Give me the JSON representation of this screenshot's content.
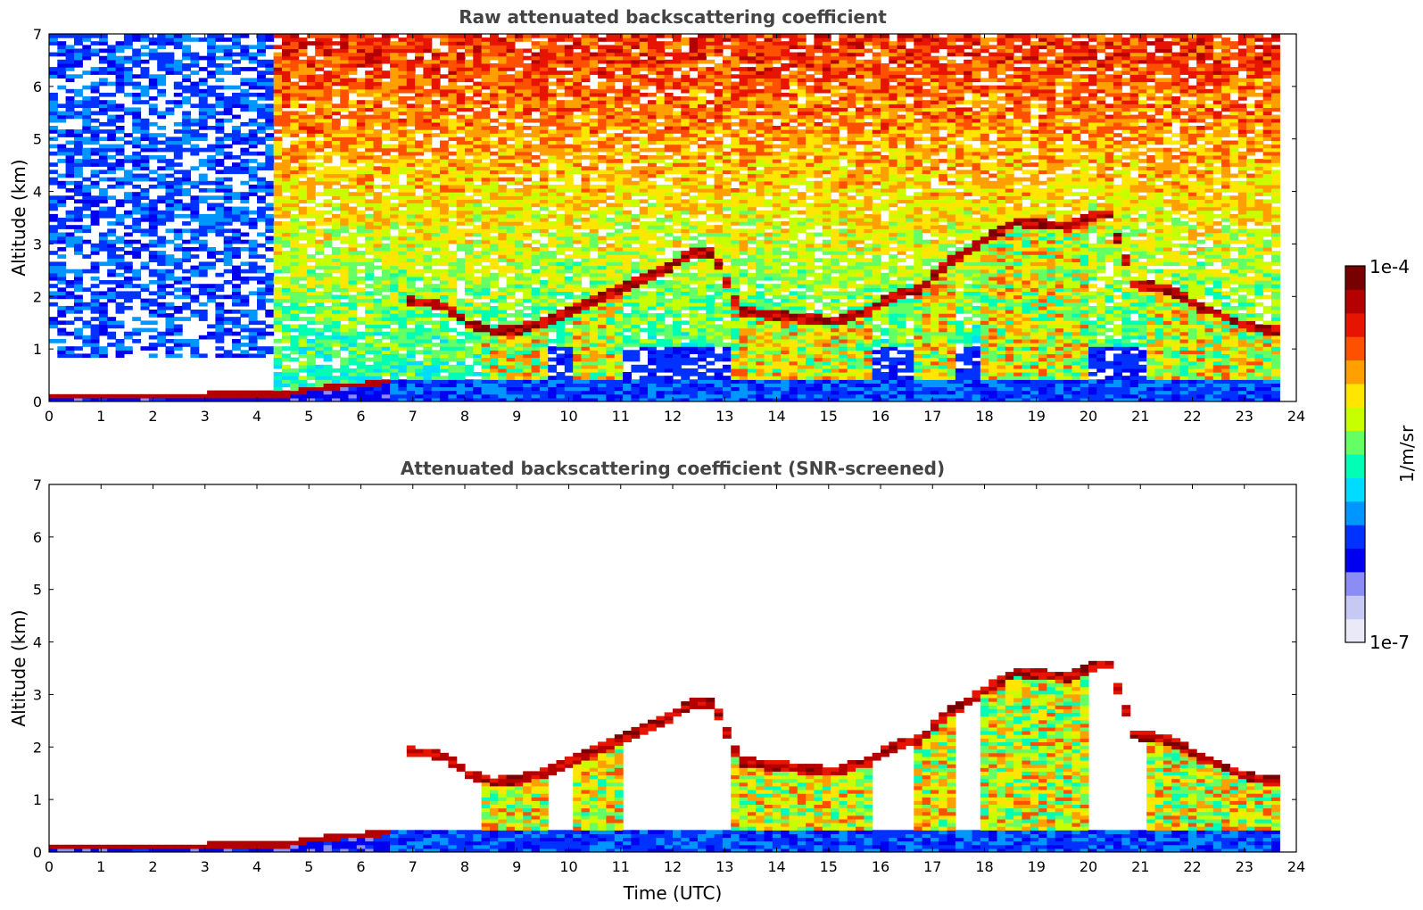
{
  "chart_data": [
    {
      "type": "heatmap",
      "title": "Raw attenuated backscattering coefficient",
      "xlabel": "",
      "ylabel": "Altitude (km)",
      "xlim": [
        0,
        24
      ],
      "ylim": [
        0,
        7
      ],
      "xticks": [
        "0",
        "1",
        "2",
        "3",
        "4",
        "5",
        "6",
        "7",
        "8",
        "9",
        "10",
        "11",
        "12",
        "13",
        "14",
        "15",
        "16",
        "17",
        "18",
        "19",
        "20",
        "21",
        "22",
        "23",
        "24"
      ],
      "yticks": [
        "0",
        "1",
        "2",
        "3",
        "4",
        "5",
        "6",
        "7"
      ],
      "screened": false,
      "features": {
        "surface_layer": [
          [
            0,
            0.08
          ],
          [
            2,
            0.08
          ],
          [
            4,
            0.1
          ],
          [
            4.5,
            0.12
          ],
          [
            5,
            0.2
          ],
          [
            5.5,
            0.26
          ],
          [
            6,
            0.3
          ],
          [
            6.5,
            0.34
          ]
        ],
        "high_noise_start_hour": 4.3,
        "cloud_base": [
          [
            6.8,
            1.9
          ],
          [
            7.5,
            1.8
          ],
          [
            8,
            1.45
          ],
          [
            8.5,
            1.3
          ],
          [
            9,
            1.35
          ],
          [
            9.4,
            1.45
          ],
          [
            11.3,
            2.3
          ],
          [
            11.8,
            2.5
          ],
          [
            12.3,
            2.8
          ],
          [
            12.7,
            2.8
          ],
          [
            13.2,
            1.7
          ],
          [
            14,
            1.6
          ],
          [
            15,
            1.5
          ],
          [
            15.7,
            1.7
          ],
          [
            16.2,
            2.0
          ],
          [
            16.7,
            2.1
          ],
          [
            17.2,
            2.6
          ],
          [
            17.7,
            2.9
          ],
          [
            18.5,
            3.4
          ],
          [
            19.5,
            3.3
          ],
          [
            20.3,
            3.6
          ],
          [
            20.8,
            2.2
          ],
          [
            21.5,
            2.1
          ],
          [
            22,
            1.8
          ],
          [
            23,
            1.4
          ],
          [
            23.6,
            1.3
          ]
        ],
        "aerosol_column_intervals": [
          [
            8.3,
            9.5
          ],
          [
            10.0,
            11.0
          ],
          [
            13.0,
            15.8
          ],
          [
            16.6,
            17.4
          ],
          [
            17.9,
            20.0
          ],
          [
            21.0,
            23.6
          ]
        ]
      }
    },
    {
      "type": "heatmap",
      "title": "Attenuated backscattering coefficient (SNR-screened)",
      "xlabel": "Time (UTC)",
      "ylabel": "Altitude (km)",
      "xlim": [
        0,
        24
      ],
      "ylim": [
        0,
        7
      ],
      "xticks": [
        "0",
        "1",
        "2",
        "3",
        "4",
        "5",
        "6",
        "7",
        "8",
        "9",
        "10",
        "11",
        "12",
        "13",
        "14",
        "15",
        "16",
        "17",
        "18",
        "19",
        "20",
        "21",
        "22",
        "23",
        "24"
      ],
      "yticks": [
        "0",
        "1",
        "2",
        "3",
        "4",
        "5",
        "6",
        "7"
      ],
      "screened": true
    }
  ],
  "colorbar": {
    "label": "1/m/sr",
    "max_label": "1e-4",
    "min_label": "1e-7",
    "colors": [
      "#e9e9f8",
      "#c8c8f5",
      "#8c8cf5",
      "#0000f0",
      "#0032ff",
      "#0096ff",
      "#00dcff",
      "#00ffb4",
      "#64ff64",
      "#c8ff00",
      "#ffe600",
      "#ffa000",
      "#ff5000",
      "#e61400",
      "#b40000",
      "#780000"
    ]
  }
}
